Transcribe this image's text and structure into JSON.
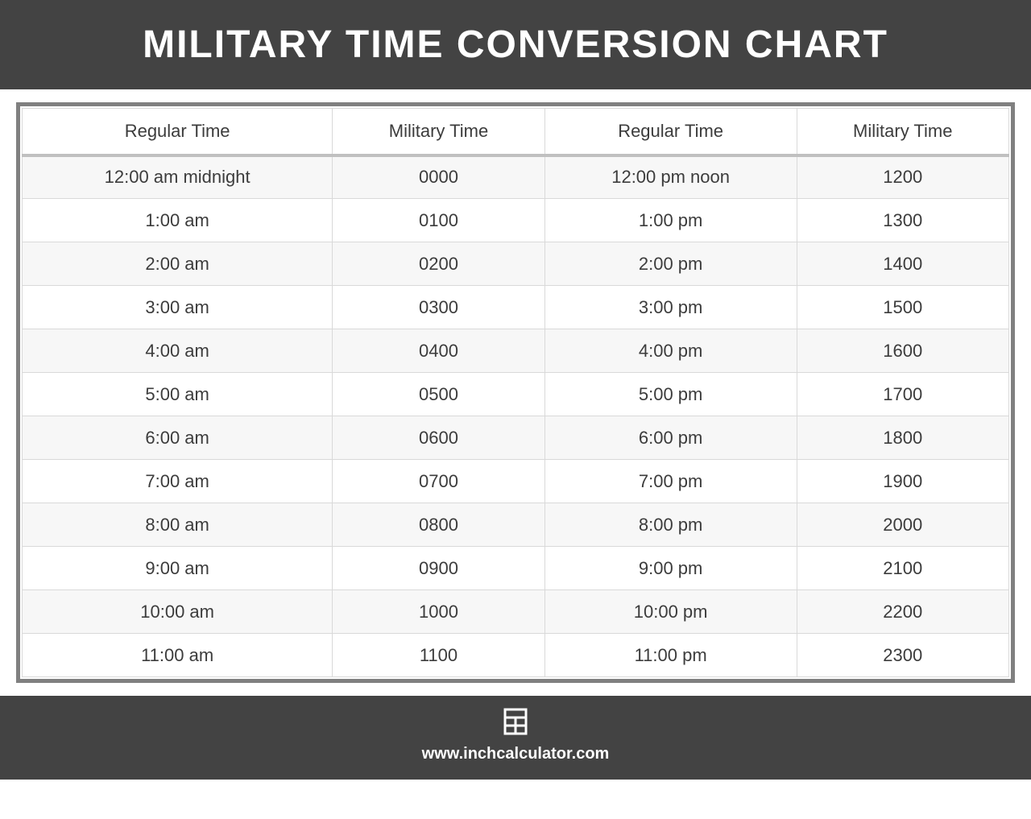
{
  "header": {
    "title": "MILITARY TIME CONVERSION CHART"
  },
  "table": {
    "columns": [
      "Regular Time",
      "Military Time",
      "Regular Time",
      "Military Time"
    ],
    "rows": [
      [
        "12:00 am midnight",
        "0000",
        "12:00 pm noon",
        "1200"
      ],
      [
        "1:00 am",
        "0100",
        "1:00 pm",
        "1300"
      ],
      [
        "2:00 am",
        "0200",
        "2:00 pm",
        "1400"
      ],
      [
        "3:00 am",
        "0300",
        "3:00 pm",
        "1500"
      ],
      [
        "4:00 am",
        "0400",
        "4:00 pm",
        "1600"
      ],
      [
        "5:00 am",
        "0500",
        "5:00 pm",
        "1700"
      ],
      [
        "6:00 am",
        "0600",
        "6:00 pm",
        "1800"
      ],
      [
        "7:00 am",
        "0700",
        "7:00 pm",
        "1900"
      ],
      [
        "8:00 am",
        "0800",
        "8:00 pm",
        "2000"
      ],
      [
        "9:00 am",
        "0900",
        "9:00 pm",
        "2100"
      ],
      [
        "10:00 am",
        "1000",
        "10:00 pm",
        "2200"
      ],
      [
        "11:00 am",
        "1100",
        "11:00 pm",
        "2300"
      ]
    ],
    "header_bg": "#ffffff",
    "row_odd_bg": "#f7f7f7",
    "row_even_bg": "#ffffff",
    "border_color": "#d9d9d9",
    "outer_border_color": "#808080",
    "text_color": "#3c3c3c",
    "header_separator_color": "#c0c0c0",
    "font_size": 22
  },
  "footer": {
    "url": "www.inchcalculator.com",
    "bg": "#434343",
    "color": "#ffffff"
  },
  "colors": {
    "page_bg": "#ffffff",
    "header_bg": "#434343",
    "header_text": "#ffffff"
  }
}
